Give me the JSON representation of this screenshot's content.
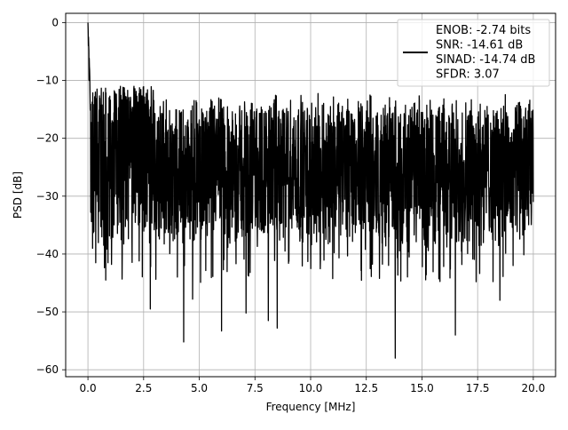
{
  "chart_data": {
    "type": "line",
    "title": "",
    "xlabel": "Frequency [MHz]",
    "ylabel": "PSD [dB]",
    "xlim": [
      -1,
      21
    ],
    "ylim": [
      -61.2,
      1.6
    ],
    "x_ticks": [
      0.0,
      2.5,
      5.0,
      7.5,
      10.0,
      12.5,
      15.0,
      17.5,
      20.0
    ],
    "x_tick_labels": [
      "0.0",
      "2.5",
      "5.0",
      "7.5",
      "10.0",
      "12.5",
      "15.0",
      "17.5",
      "20.0"
    ],
    "y_ticks": [
      0,
      -10,
      -20,
      -30,
      -40,
      -50,
      -60
    ],
    "y_tick_labels": [
      "0",
      "−10",
      "−20",
      "−30",
      "−40",
      "−50",
      "−60"
    ],
    "grid": true,
    "legend_position": "top-right",
    "series": [
      {
        "legend_text": [
          "ENOB: -2.74 bits",
          "SNR: -14.61 dB",
          "SINAD: -14.74 dB",
          "SFDR: 3.07"
        ],
        "color": "#000000",
        "x_start": 0.0,
        "x_end": 20.0,
        "notable_values": [
          {
            "x": 0.0,
            "y": 0.0
          },
          {
            "x": 0.02,
            "y": -4
          },
          {
            "x": 0.05,
            "y": -10
          },
          {
            "x": 0.1,
            "y": -15
          },
          {
            "x": 0.35,
            "y": -41.5
          },
          {
            "x": 0.8,
            "y": -44.5
          },
          {
            "x": 2.8,
            "y": -49.5
          },
          {
            "x": 4.3,
            "y": -55.2
          },
          {
            "x": 4.7,
            "y": -47.8
          },
          {
            "x": 6.0,
            "y": -53.3
          },
          {
            "x": 7.1,
            "y": -50.2
          },
          {
            "x": 8.1,
            "y": -51.5
          },
          {
            "x": 8.5,
            "y": -52.8
          },
          {
            "x": 13.8,
            "y": -58.0
          },
          {
            "x": 16.5,
            "y": -54.0
          },
          {
            "x": 18.5,
            "y": -48.0
          }
        ],
        "envelope": {
          "upper_typical": -14,
          "center_typical": -24,
          "lower_typical": -37
        }
      }
    ]
  }
}
